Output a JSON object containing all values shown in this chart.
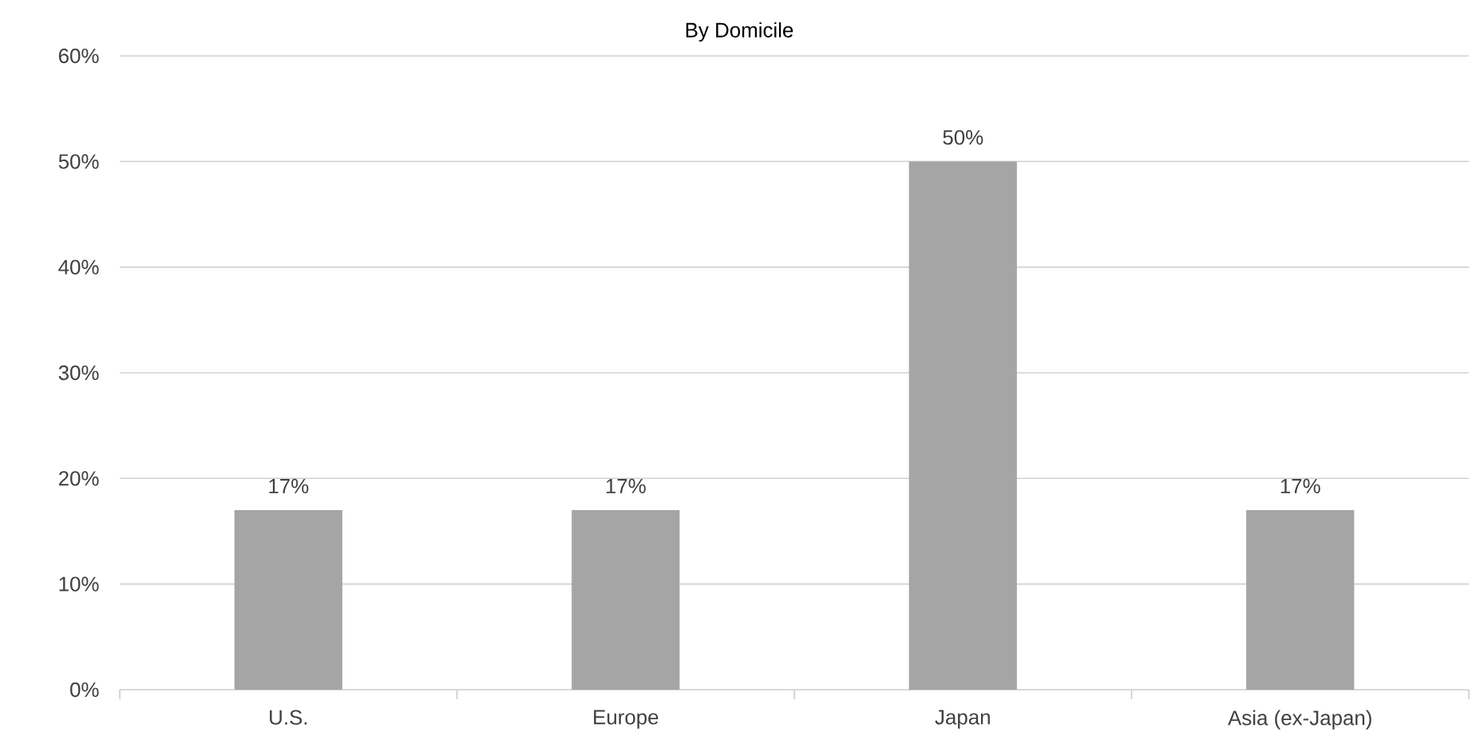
{
  "chart_data": {
    "type": "bar",
    "title": "By Domicile",
    "categories": [
      "U.S.",
      "Europe",
      "Japan",
      "Asia (ex-Japan)"
    ],
    "values": [
      17,
      17,
      50,
      17
    ],
    "value_labels": [
      "17%",
      "17%",
      "50%",
      "17%"
    ],
    "color": "#a5a5a5",
    "ylim": [
      0,
      60
    ],
    "yticks": [
      {
        "value": 0,
        "label": "0%"
      },
      {
        "value": 10,
        "label": "10%"
      },
      {
        "value": 20,
        "label": "20%"
      },
      {
        "value": 30,
        "label": "30%"
      },
      {
        "value": 40,
        "label": "40%"
      },
      {
        "value": 50,
        "label": "50%"
      },
      {
        "value": 60,
        "label": "60%"
      }
    ],
    "grid": "y"
  }
}
